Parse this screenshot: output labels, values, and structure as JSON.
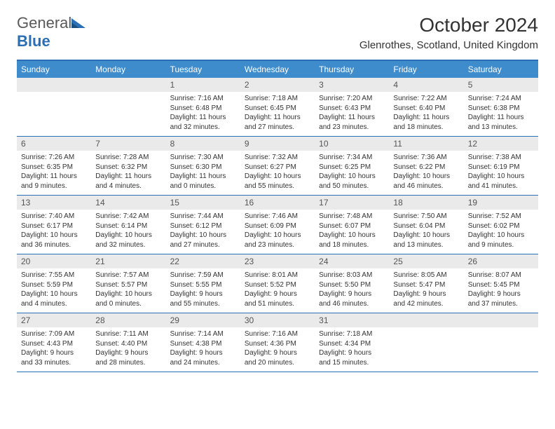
{
  "brand": {
    "name_part1": "General",
    "name_part2": "Blue"
  },
  "header": {
    "month_title": "October 2024",
    "location": "Glenrothes, Scotland, United Kingdom"
  },
  "colors": {
    "header_bar": "#3e8ccc",
    "border": "#2a6fb5",
    "daynum_bg": "#eaeaea",
    "text": "#333333",
    "white": "#ffffff"
  },
  "weekdays": [
    "Sunday",
    "Monday",
    "Tuesday",
    "Wednesday",
    "Thursday",
    "Friday",
    "Saturday"
  ],
  "calendar": {
    "first_weekday_index": 2,
    "days": [
      {
        "n": "1",
        "sunrise": "Sunrise: 7:16 AM",
        "sunset": "Sunset: 6:48 PM",
        "daylight": "Daylight: 11 hours and 32 minutes."
      },
      {
        "n": "2",
        "sunrise": "Sunrise: 7:18 AM",
        "sunset": "Sunset: 6:45 PM",
        "daylight": "Daylight: 11 hours and 27 minutes."
      },
      {
        "n": "3",
        "sunrise": "Sunrise: 7:20 AM",
        "sunset": "Sunset: 6:43 PM",
        "daylight": "Daylight: 11 hours and 23 minutes."
      },
      {
        "n": "4",
        "sunrise": "Sunrise: 7:22 AM",
        "sunset": "Sunset: 6:40 PM",
        "daylight": "Daylight: 11 hours and 18 minutes."
      },
      {
        "n": "5",
        "sunrise": "Sunrise: 7:24 AM",
        "sunset": "Sunset: 6:38 PM",
        "daylight": "Daylight: 11 hours and 13 minutes."
      },
      {
        "n": "6",
        "sunrise": "Sunrise: 7:26 AM",
        "sunset": "Sunset: 6:35 PM",
        "daylight": "Daylight: 11 hours and 9 minutes."
      },
      {
        "n": "7",
        "sunrise": "Sunrise: 7:28 AM",
        "sunset": "Sunset: 6:32 PM",
        "daylight": "Daylight: 11 hours and 4 minutes."
      },
      {
        "n": "8",
        "sunrise": "Sunrise: 7:30 AM",
        "sunset": "Sunset: 6:30 PM",
        "daylight": "Daylight: 11 hours and 0 minutes."
      },
      {
        "n": "9",
        "sunrise": "Sunrise: 7:32 AM",
        "sunset": "Sunset: 6:27 PM",
        "daylight": "Daylight: 10 hours and 55 minutes."
      },
      {
        "n": "10",
        "sunrise": "Sunrise: 7:34 AM",
        "sunset": "Sunset: 6:25 PM",
        "daylight": "Daylight: 10 hours and 50 minutes."
      },
      {
        "n": "11",
        "sunrise": "Sunrise: 7:36 AM",
        "sunset": "Sunset: 6:22 PM",
        "daylight": "Daylight: 10 hours and 46 minutes."
      },
      {
        "n": "12",
        "sunrise": "Sunrise: 7:38 AM",
        "sunset": "Sunset: 6:19 PM",
        "daylight": "Daylight: 10 hours and 41 minutes."
      },
      {
        "n": "13",
        "sunrise": "Sunrise: 7:40 AM",
        "sunset": "Sunset: 6:17 PM",
        "daylight": "Daylight: 10 hours and 36 minutes."
      },
      {
        "n": "14",
        "sunrise": "Sunrise: 7:42 AM",
        "sunset": "Sunset: 6:14 PM",
        "daylight": "Daylight: 10 hours and 32 minutes."
      },
      {
        "n": "15",
        "sunrise": "Sunrise: 7:44 AM",
        "sunset": "Sunset: 6:12 PM",
        "daylight": "Daylight: 10 hours and 27 minutes."
      },
      {
        "n": "16",
        "sunrise": "Sunrise: 7:46 AM",
        "sunset": "Sunset: 6:09 PM",
        "daylight": "Daylight: 10 hours and 23 minutes."
      },
      {
        "n": "17",
        "sunrise": "Sunrise: 7:48 AM",
        "sunset": "Sunset: 6:07 PM",
        "daylight": "Daylight: 10 hours and 18 minutes."
      },
      {
        "n": "18",
        "sunrise": "Sunrise: 7:50 AM",
        "sunset": "Sunset: 6:04 PM",
        "daylight": "Daylight: 10 hours and 13 minutes."
      },
      {
        "n": "19",
        "sunrise": "Sunrise: 7:52 AM",
        "sunset": "Sunset: 6:02 PM",
        "daylight": "Daylight: 10 hours and 9 minutes."
      },
      {
        "n": "20",
        "sunrise": "Sunrise: 7:55 AM",
        "sunset": "Sunset: 5:59 PM",
        "daylight": "Daylight: 10 hours and 4 minutes."
      },
      {
        "n": "21",
        "sunrise": "Sunrise: 7:57 AM",
        "sunset": "Sunset: 5:57 PM",
        "daylight": "Daylight: 10 hours and 0 minutes."
      },
      {
        "n": "22",
        "sunrise": "Sunrise: 7:59 AM",
        "sunset": "Sunset: 5:55 PM",
        "daylight": "Daylight: 9 hours and 55 minutes."
      },
      {
        "n": "23",
        "sunrise": "Sunrise: 8:01 AM",
        "sunset": "Sunset: 5:52 PM",
        "daylight": "Daylight: 9 hours and 51 minutes."
      },
      {
        "n": "24",
        "sunrise": "Sunrise: 8:03 AM",
        "sunset": "Sunset: 5:50 PM",
        "daylight": "Daylight: 9 hours and 46 minutes."
      },
      {
        "n": "25",
        "sunrise": "Sunrise: 8:05 AM",
        "sunset": "Sunset: 5:47 PM",
        "daylight": "Daylight: 9 hours and 42 minutes."
      },
      {
        "n": "26",
        "sunrise": "Sunrise: 8:07 AM",
        "sunset": "Sunset: 5:45 PM",
        "daylight": "Daylight: 9 hours and 37 minutes."
      },
      {
        "n": "27",
        "sunrise": "Sunrise: 7:09 AM",
        "sunset": "Sunset: 4:43 PM",
        "daylight": "Daylight: 9 hours and 33 minutes."
      },
      {
        "n": "28",
        "sunrise": "Sunrise: 7:11 AM",
        "sunset": "Sunset: 4:40 PM",
        "daylight": "Daylight: 9 hours and 28 minutes."
      },
      {
        "n": "29",
        "sunrise": "Sunrise: 7:14 AM",
        "sunset": "Sunset: 4:38 PM",
        "daylight": "Daylight: 9 hours and 24 minutes."
      },
      {
        "n": "30",
        "sunrise": "Sunrise: 7:16 AM",
        "sunset": "Sunset: 4:36 PM",
        "daylight": "Daylight: 9 hours and 20 minutes."
      },
      {
        "n": "31",
        "sunrise": "Sunrise: 7:18 AM",
        "sunset": "Sunset: 4:34 PM",
        "daylight": "Daylight: 9 hours and 15 minutes."
      }
    ]
  }
}
